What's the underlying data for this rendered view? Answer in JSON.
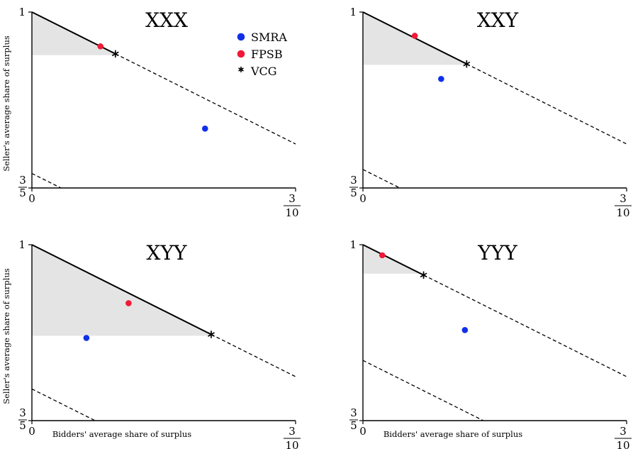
{
  "legend": {
    "items": [
      {
        "label": "SMRA",
        "color": "#1030e8",
        "marker": "dot"
      },
      {
        "label": "FPSB",
        "color": "#f01a36",
        "marker": "dot"
      },
      {
        "label": "VCG",
        "color": "#000000",
        "marker": "star"
      }
    ]
  },
  "chart_data": [
    {
      "type": "scatter",
      "title": "XXX",
      "xlabel": "",
      "ylabel": "Seller's average share of surplus",
      "xlim": [
        0,
        0.3
      ],
      "ylim": [
        0.6,
        1
      ],
      "x_ticks": {
        "left": "0",
        "right_num": "3",
        "right_den": "10"
      },
      "y_ticks": {
        "top": "1",
        "bottom_num": "3",
        "bottom_den": "5"
      },
      "frontier_end_x": 0.3,
      "lower_dashed_line_start_y": 0.633,
      "shaded_floor_y": 0.902,
      "series": [
        {
          "name": "SMRA",
          "x": 0.197,
          "y": 0.735
        },
        {
          "name": "FPSB",
          "x": 0.078,
          "y": 0.922
        },
        {
          "name": "VCG",
          "x": 0.095,
          "y": 0.905
        }
      ]
    },
    {
      "type": "scatter",
      "title": "XXY",
      "xlabel": "",
      "ylabel": "",
      "xlim": [
        0,
        0.3
      ],
      "ylim": [
        0.6,
        1
      ],
      "x_ticks": {
        "left": "0",
        "right_num": "3",
        "right_den": "10"
      },
      "y_ticks": {
        "top": "1",
        "bottom_num": "3",
        "bottom_den": "5"
      },
      "frontier_end_x": 0.3,
      "lower_dashed_line_start_y": 0.642,
      "shaded_floor_y": 0.88,
      "series": [
        {
          "name": "SMRA",
          "x": 0.089,
          "y": 0.848
        },
        {
          "name": "FPSB",
          "x": 0.059,
          "y": 0.946
        },
        {
          "name": "VCG",
          "x": 0.118,
          "y": 0.882
        }
      ]
    },
    {
      "type": "scatter",
      "title": "XYY",
      "xlabel": "Bidders' average share of surplus",
      "ylabel": "Seller's average share of surplus",
      "xlim": [
        0,
        0.3
      ],
      "ylim": [
        0.6,
        1
      ],
      "x_ticks": {
        "left": "0",
        "right_num": "3",
        "right_den": "10"
      },
      "y_ticks": {
        "top": "1",
        "bottom_num": "3",
        "bottom_den": "5"
      },
      "frontier_end_x": 0.3,
      "lower_dashed_line_start_y": 0.672,
      "shaded_floor_y": 0.793,
      "series": [
        {
          "name": "SMRA",
          "x": 0.062,
          "y": 0.788
        },
        {
          "name": "FPSB",
          "x": 0.11,
          "y": 0.867
        },
        {
          "name": "VCG",
          "x": 0.204,
          "y": 0.796
        }
      ]
    },
    {
      "type": "scatter",
      "title": "YYY",
      "xlabel": "Bidders' average share of surplus",
      "ylabel": "",
      "xlim": [
        0,
        0.3
      ],
      "ylim": [
        0.6,
        1
      ],
      "x_ticks": {
        "left": "0",
        "right_num": "3",
        "right_den": "10"
      },
      "y_ticks": {
        "top": "1",
        "bottom_num": "3",
        "bottom_den": "5"
      },
      "frontier_end_x": 0.3,
      "lower_dashed_line_start_y": 0.737,
      "shaded_floor_y": 0.934,
      "series": [
        {
          "name": "SMRA",
          "x": 0.116,
          "y": 0.806
        },
        {
          "name": "FPSB",
          "x": 0.022,
          "y": 0.976
        },
        {
          "name": "VCG",
          "x": 0.069,
          "y": 0.931
        }
      ]
    }
  ]
}
